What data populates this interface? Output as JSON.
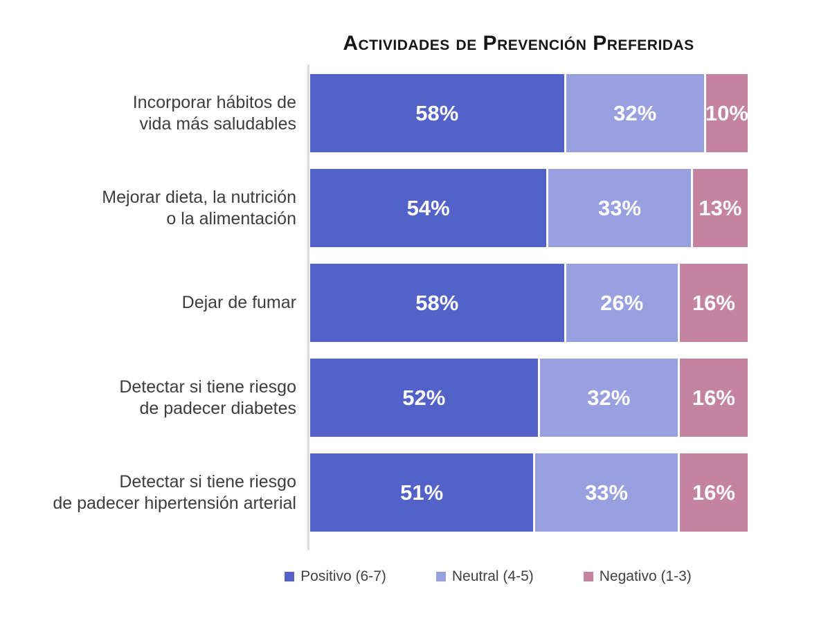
{
  "title": "Actividades de Prevención Preferidas",
  "chart_data": {
    "type": "bar",
    "orientation": "horizontal",
    "stacked": true,
    "unit": "%",
    "xlim": [
      0,
      100
    ],
    "grid": false,
    "legend_position": "bottom",
    "title": "Actividades de Prevención Preferidas",
    "categories": [
      "Incorporar hábitos de vida más saludables",
      "Mejorar dieta, la nutrición o la alimentación",
      "Dejar de fumar",
      "Detectar si tiene riesgo de padecer diabetes",
      "Detectar si tiene riesgo de padecer hipertensión arterial"
    ],
    "series": [
      {
        "name": "Positivo (6-7)",
        "color": "#5262c8",
        "values": [
          58,
          54,
          58,
          52,
          51
        ]
      },
      {
        "name": "Neutral (4-5)",
        "color": "#99a0df",
        "values": [
          32,
          33,
          26,
          32,
          33
        ]
      },
      {
        "name": "Negativo (1-3)",
        "color": "#c4839e",
        "values": [
          10,
          13,
          16,
          16,
          16
        ]
      }
    ]
  },
  "rows": [
    {
      "label_lines": [
        "Incorporar hábitos de",
        "vida más saludables"
      ],
      "cells": [
        "58%",
        "32%",
        "10%"
      ]
    },
    {
      "label_lines": [
        "Mejorar dieta, la nutrición",
        "o la alimentación"
      ],
      "cells": [
        "54%",
        "33%",
        "13%"
      ]
    },
    {
      "label_lines": [
        "Dejar de fumar",
        ""
      ],
      "cells": [
        "58%",
        "26%",
        "16%"
      ]
    },
    {
      "label_lines": [
        "Detectar si tiene riesgo",
        "de padecer diabetes"
      ],
      "cells": [
        "52%",
        "32%",
        "16%"
      ]
    },
    {
      "label_lines": [
        "Detectar si tiene riesgo",
        "de padecer hipertensión arterial"
      ],
      "cells": [
        "51%",
        "33%",
        "16%"
      ]
    }
  ],
  "legend": {
    "items": [
      "Positivo (6-7)",
      "Neutral (4-5)",
      "Negativo (1-3)"
    ]
  },
  "colors": {
    "positivo": "#5262c8",
    "neutral": "#99a0df",
    "negativo": "#c4839e",
    "axis_line": "#d9d9d9",
    "label_text": "#3d3d3d",
    "value_text": "#ffffff"
  }
}
